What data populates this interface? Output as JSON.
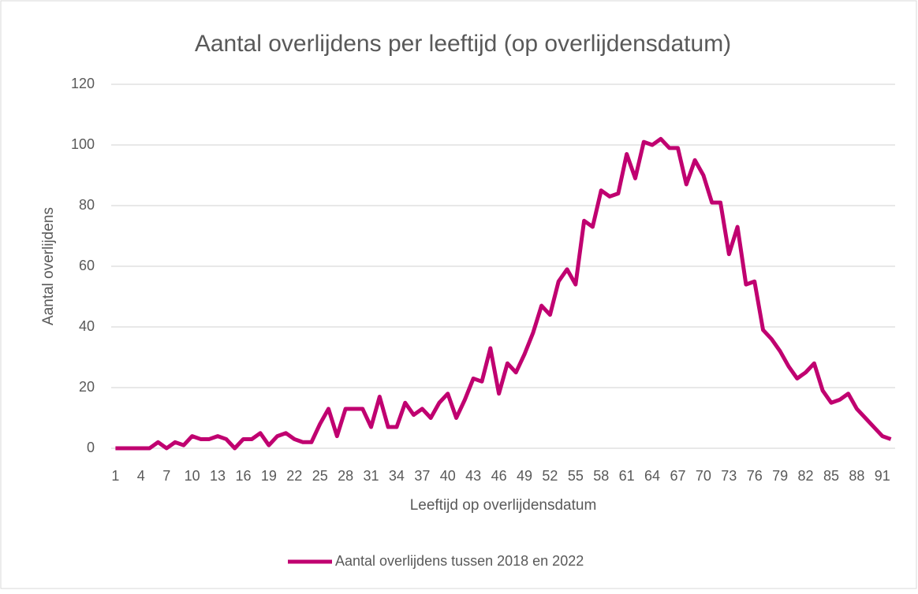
{
  "chart_data": {
    "type": "line",
    "title": "Aantal overlijdens per leeftijd (op overlijdensdatum)",
    "x_label": "Leeftijd op overlijdensdatum",
    "y_label": "Aantal overlijdens",
    "categories": [
      "1",
      null,
      null,
      "4",
      null,
      null,
      "7",
      null,
      null,
      "10",
      null,
      null,
      "13",
      null,
      null,
      "16",
      null,
      null,
      "19",
      null,
      null,
      "22",
      null,
      null,
      "25",
      null,
      null,
      "28",
      null,
      null,
      "31",
      null,
      null,
      "34",
      null,
      null,
      "37",
      null,
      null,
      "40",
      null,
      null,
      "43",
      null,
      null,
      "46",
      null,
      null,
      "49",
      null,
      null,
      "52",
      null,
      null,
      "55",
      null,
      null,
      "58",
      null,
      null,
      "61",
      null,
      null,
      "64",
      null,
      null,
      "67",
      null,
      null,
      "70",
      null,
      null,
      "73",
      null,
      null,
      "76",
      null,
      null,
      "79",
      null,
      null,
      "82",
      null,
      null,
      "85",
      null,
      null,
      "88",
      null,
      null,
      "91",
      null
    ],
    "series": [
      {
        "name": "Aantal overlijdens tussen 2018 en 2022",
        "color": "#c00070",
        "values": [
          0,
          0,
          0,
          0,
          0,
          2,
          0,
          2,
          1,
          4,
          3,
          3,
          4,
          3,
          0,
          3,
          3,
          5,
          1,
          4,
          5,
          3,
          2,
          2,
          8,
          13,
          4,
          13,
          13,
          13,
          7,
          17,
          7,
          7,
          15,
          11,
          13,
          10,
          15,
          18,
          10,
          16,
          23,
          22,
          33,
          18,
          28,
          25,
          31,
          38,
          47,
          44,
          55,
          59,
          54,
          75,
          73,
          85,
          83,
          84,
          97,
          89,
          101,
          100,
          102,
          99,
          99,
          87,
          95,
          90,
          81,
          81,
          64,
          73,
          54,
          55,
          39,
          36,
          32,
          27,
          23,
          25,
          28,
          19,
          15,
          16,
          18,
          13,
          10,
          7,
          4,
          3
        ]
      }
    ],
    "ylim": [
      0,
      120
    ],
    "yticks": [
      0,
      20,
      40,
      60,
      80,
      100,
      120
    ],
    "grid": true,
    "legend": "bottom"
  }
}
